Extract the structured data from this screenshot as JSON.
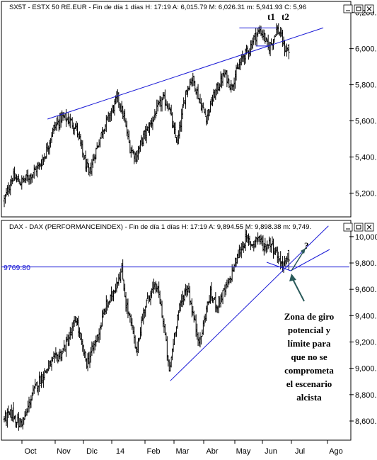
{
  "colors": {
    "price": "#000000",
    "trendline": "#1a1ad6",
    "hline": "#1a1ad6",
    "level_label": "#1a1ad6",
    "arrow": "#2a5a5a",
    "frame": "#000000"
  },
  "window_buttons": [
    "minimize-icon",
    "maximize-icon",
    "close-icon"
  ],
  "top_panel": {
    "header": "SX5T - ESTX 50 RE.EUR - Fin de día 1 días  H: 17:19  A: 6,015.79  M: 6,026.31  m: 5,941.93  C: 5,96",
    "y_ticks": [
      "6,200.0",
      "6,000.0",
      "5,800.0",
      "5,600.0",
      "5,400.0",
      "5,200.0"
    ],
    "annotations": {
      "t1": "t1",
      "t2": "t2"
    }
  },
  "bottom_panel": {
    "header": "DAX - DAX (PERFORMANCEINDEX) - Fin de día 1 días  H: 17:19  A: 9,894.55  M: 9,898.38  m: 9,749.",
    "y_ticks": [
      "10,000.",
      "9,800.0",
      "9,600.0",
      "9,400.0",
      "9,200.0",
      "9,000.0",
      "8,800.0",
      "8,600.0"
    ],
    "level_label": "9769.80",
    "question_mark": "?",
    "note_lines": [
      "Zona de giro",
      "potencial y",
      "límite para",
      "que no se",
      "comprometa",
      "el escenario",
      "alcista"
    ]
  },
  "x_axis": {
    "labels": [
      "Oct",
      "Nov",
      "Dic",
      "14",
      "Feb",
      "Mar",
      "Abr",
      "May",
      "Jun",
      "Jul",
      "Ago"
    ]
  },
  "chart_data": [
    {
      "type": "bar",
      "title": "SX5T - ESTX 50 RE.EUR",
      "subtitle": "Fin de día 1 días  H: 17:19  A: 6,015.79  M: 6,026.31  m: 5,941.93  C: 5,96",
      "x_labels": [
        "Oct",
        "Nov",
        "Dic",
        "14",
        "Feb",
        "Mar",
        "Abr",
        "May",
        "Jun",
        "Jul",
        "Ago"
      ],
      "y_ticks": [
        6200,
        6000,
        5800,
        5600,
        5400,
        5200
      ],
      "ylim": [
        5080,
        6240
      ],
      "last_bar": {
        "open": 6015.79,
        "high": 6026.31,
        "low": 5941.93
      },
      "close_path": [
        [
          0,
          5160
        ],
        [
          8,
          5290
        ],
        [
          16,
          5260
        ],
        [
          26,
          5300
        ],
        [
          34,
          5350
        ],
        [
          40,
          5420
        ],
        [
          48,
          5560
        ],
        [
          56,
          5620
        ],
        [
          64,
          5600
        ],
        [
          70,
          5560
        ],
        [
          76,
          5420
        ],
        [
          82,
          5300
        ],
        [
          88,
          5420
        ],
        [
          96,
          5560
        ],
        [
          104,
          5650
        ],
        [
          110,
          5730
        ],
        [
          116,
          5620
        ],
        [
          122,
          5450
        ],
        [
          128,
          5400
        ],
        [
          134,
          5500
        ],
        [
          140,
          5560
        ],
        [
          148,
          5660
        ],
        [
          154,
          5720
        ],
        [
          160,
          5680
        ],
        [
          164,
          5550
        ],
        [
          168,
          5480
        ],
        [
          172,
          5620
        ],
        [
          176,
          5760
        ],
        [
          182,
          5840
        ],
        [
          186,
          5780
        ],
        [
          190,
          5700
        ],
        [
          196,
          5620
        ],
        [
          202,
          5720
        ],
        [
          208,
          5800
        ],
        [
          214,
          5860
        ],
        [
          220,
          5790
        ],
        [
          226,
          5880
        ],
        [
          232,
          5960
        ],
        [
          238,
          6000
        ],
        [
          242,
          6060
        ],
        [
          248,
          6100
        ],
        [
          252,
          6070
        ],
        [
          256,
          6000
        ],
        [
          260,
          6040
        ],
        [
          264,
          6110
        ],
        [
          268,
          6080
        ],
        [
          272,
          6000
        ],
        [
          276,
          5990
        ]
      ],
      "trendline": {
        "from": [
          42,
          5610
        ],
        "to": [
          282,
          6080
        ]
      },
      "t1_high_line": {
        "y": 6115,
        "x_from": 228,
        "x_to": 255
      },
      "t2_low_line": {
        "y": 6015,
        "x_from": 244,
        "x_to": 255
      }
    },
    {
      "type": "bar",
      "title": "DAX - DAX (PERFORMANCEINDEX)",
      "subtitle": "Fin de día 1 días  H: 17:19  A: 9,894.55  M: 9,898.38  m: 9,749.",
      "x_labels": [
        "Oct",
        "Nov",
        "Dic",
        "14",
        "Feb",
        "Mar",
        "Abr",
        "May",
        "Jun",
        "Jul",
        "Ago"
      ],
      "y_ticks": [
        10000,
        9800,
        9600,
        9400,
        9200,
        9000,
        8800,
        8600
      ],
      "ylim": [
        8460,
        10080
      ],
      "level": 9769.8,
      "last_bar": {
        "open": 9894.55,
        "high": 9898.38,
        "low": 9749
      },
      "close_path": [
        [
          0,
          8620
        ],
        [
          8,
          8660
        ],
        [
          14,
          8580
        ],
        [
          20,
          8620
        ],
        [
          26,
          8780
        ],
        [
          32,
          8880
        ],
        [
          40,
          8980
        ],
        [
          48,
          9060
        ],
        [
          56,
          9120
        ],
        [
          64,
          9250
        ],
        [
          70,
          9380
        ],
        [
          74,
          9200
        ],
        [
          80,
          9040
        ],
        [
          86,
          9150
        ],
        [
          92,
          9280
        ],
        [
          98,
          9460
        ],
        [
          104,
          9540
        ],
        [
          110,
          9680
        ],
        [
          114,
          9740
        ],
        [
          118,
          9500
        ],
        [
          124,
          9300
        ],
        [
          128,
          9120
        ],
        [
          132,
          9300
        ],
        [
          136,
          9460
        ],
        [
          142,
          9580
        ],
        [
          148,
          9620
        ],
        [
          152,
          9470
        ],
        [
          156,
          9250
        ],
        [
          160,
          8960
        ],
        [
          164,
          9200
        ],
        [
          168,
          9400
        ],
        [
          174,
          9560
        ],
        [
          178,
          9620
        ],
        [
          182,
          9450
        ],
        [
          186,
          9300
        ],
        [
          190,
          9200
        ],
        [
          196,
          9450
        ],
        [
          200,
          9560
        ],
        [
          206,
          9480
        ],
        [
          212,
          9560
        ],
        [
          218,
          9650
        ],
        [
          222,
          9760
        ],
        [
          228,
          9880
        ],
        [
          234,
          9980
        ],
        [
          240,
          9940
        ],
        [
          246,
          10000
        ],
        [
          252,
          9920
        ],
        [
          258,
          9960
        ],
        [
          264,
          9880
        ],
        [
          268,
          9800
        ],
        [
          276,
          9810
        ]
      ],
      "trendline": {
        "from": [
          161,
          8905
        ],
        "to": [
          300,
          9990
        ]
      },
      "hline_x_from": 0
    }
  ]
}
